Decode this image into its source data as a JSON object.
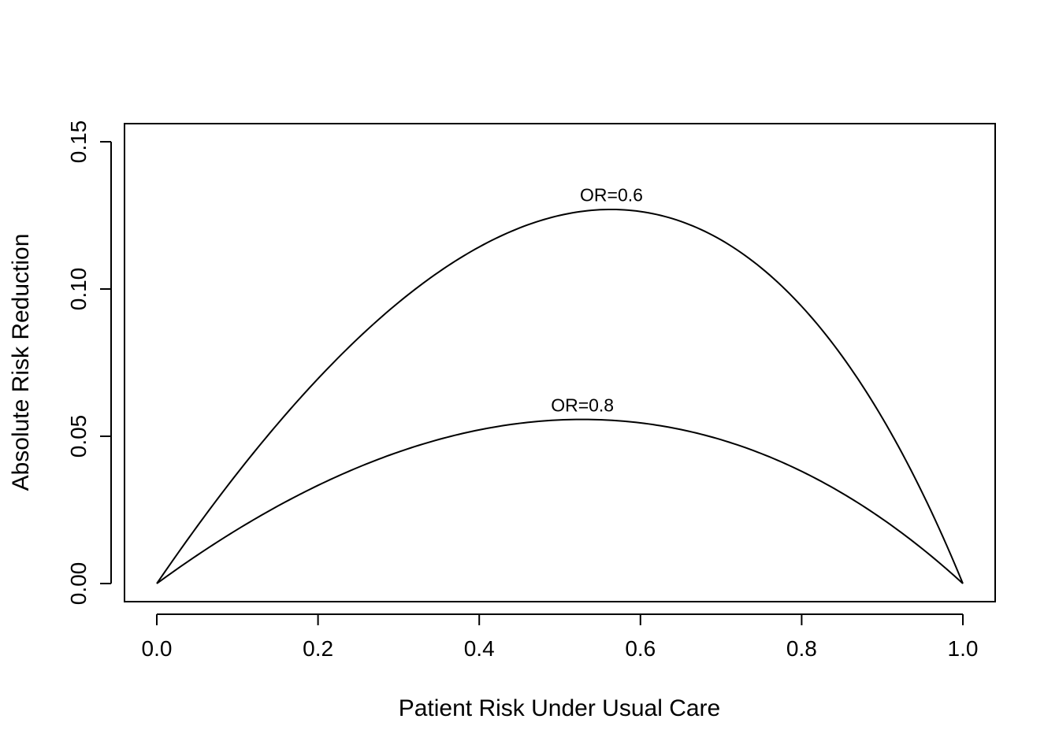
{
  "chart_data": {
    "type": "line",
    "title": "",
    "xlabel": "Patient Risk Under Usual Care",
    "ylabel": "Absolute Risk Reduction",
    "xlim": [
      -0.04,
      1.04
    ],
    "ylim": [
      -0.006,
      0.156
    ],
    "x_ticks": [
      0.0,
      0.2,
      0.4,
      0.6,
      0.8,
      1.0
    ],
    "x_tick_labels": [
      "0.0",
      "0.2",
      "0.4",
      "0.6",
      "0.8",
      "1.0"
    ],
    "y_ticks": [
      0.0,
      0.05,
      0.1,
      0.15
    ],
    "y_tick_labels": [
      "0.00",
      "0.05",
      "0.10",
      "0.15"
    ],
    "grid": false,
    "legend": "none",
    "series": [
      {
        "name": "OR=0.6",
        "odds_ratio": 0.6,
        "x": [
          0.0,
          0.05,
          0.1,
          0.15,
          0.2,
          0.25,
          0.3,
          0.35,
          0.4,
          0.45,
          0.5,
          0.55,
          0.6,
          0.65,
          0.7,
          0.75,
          0.8,
          0.85,
          0.9,
          0.95,
          1.0
        ],
        "y": [
          0.0,
          0.0194,
          0.0375,
          0.0543,
          0.0696,
          0.0833,
          0.0954,
          0.1057,
          0.1143,
          0.1208,
          0.125,
          0.1268,
          0.126,
          0.1223,
          0.1154,
          0.1071,
          0.0941,
          0.0772,
          0.0562,
          0.0307,
          0.0
        ],
        "label": "OR=0.6",
        "label_at": [
          0.564,
          0.1271
        ]
      },
      {
        "name": "OR=0.8",
        "odds_ratio": 0.8,
        "x": [
          0.0,
          0.05,
          0.1,
          0.15,
          0.2,
          0.25,
          0.3,
          0.35,
          0.4,
          0.45,
          0.5,
          0.55,
          0.6,
          0.65,
          0.7,
          0.75,
          0.8,
          0.85,
          0.9,
          0.95,
          1.0
        ],
        "y": [
          0.0,
          0.0096,
          0.0184,
          0.0262,
          0.0328,
          0.0391,
          0.0439,
          0.0479,
          0.0522,
          0.0542,
          0.0556,
          0.0557,
          0.0545,
          0.0524,
          0.0489,
          0.0441,
          0.0381,
          0.0306,
          0.0221,
          0.0115,
          0.0
        ],
        "label": "OR=0.8",
        "label_at": [
          0.528,
          0.0557
        ]
      }
    ]
  }
}
